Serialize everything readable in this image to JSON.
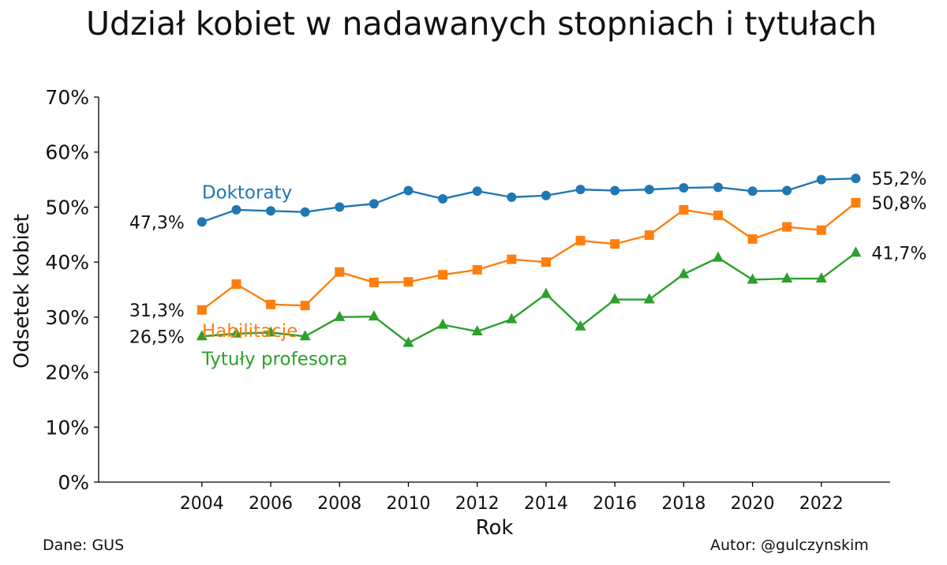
{
  "chart_data": {
    "type": "line",
    "title": "Udział kobiet w nadawanych stopniach i tytułach",
    "xlabel": "Rok",
    "ylabel": "Odsetek kobiet",
    "x": [
      2004,
      2005,
      2006,
      2007,
      2008,
      2009,
      2010,
      2011,
      2012,
      2013,
      2014,
      2015,
      2016,
      2017,
      2018,
      2019,
      2020,
      2021,
      2022,
      2023
    ],
    "xticks": [
      "2004",
      "2006",
      "2008",
      "2010",
      "2012",
      "2014",
      "2016",
      "2018",
      "2020",
      "2022"
    ],
    "xlim": [
      2001,
      2024
    ],
    "ylim": [
      0,
      70
    ],
    "yticks": [
      "0%",
      "10%",
      "20%",
      "30%",
      "40%",
      "50%",
      "60%",
      "70%"
    ],
    "grid": false,
    "series": [
      {
        "name": "Doktoraty",
        "color": "#1f77b4",
        "marker": "circle",
        "values": [
          47.3,
          49.5,
          49.3,
          49.1,
          50.0,
          50.6,
          53.0,
          51.5,
          52.9,
          51.8,
          52.1,
          53.2,
          53.0,
          53.2,
          53.5,
          53.6,
          52.9,
          53.0,
          55.0,
          55.2
        ],
        "start_label": "47,3%",
        "end_label": "55,2%"
      },
      {
        "name": "Habilitacje",
        "color": "#ff7f0e",
        "marker": "square",
        "values": [
          31.3,
          36.0,
          32.3,
          32.1,
          38.2,
          36.3,
          36.4,
          37.7,
          38.6,
          40.5,
          40.0,
          43.9,
          43.3,
          44.9,
          49.5,
          48.5,
          44.2,
          46.4,
          45.8,
          50.8
        ],
        "start_label": "31,3%",
        "end_label": "50,8%"
      },
      {
        "name": "Tytuły profesora",
        "color": "#2ca02c",
        "marker": "triangle",
        "values": [
          26.5,
          27.0,
          27.2,
          26.5,
          30.0,
          30.1,
          25.3,
          28.6,
          27.4,
          29.6,
          34.2,
          28.3,
          33.2,
          33.2,
          37.8,
          40.8,
          36.8,
          37.0,
          37.0,
          41.7
        ],
        "start_label": "26,5%",
        "end_label": "41,7%"
      }
    ],
    "footer": {
      "source": "Dane: GUS",
      "author": "Autor: @gulczynskim"
    }
  }
}
